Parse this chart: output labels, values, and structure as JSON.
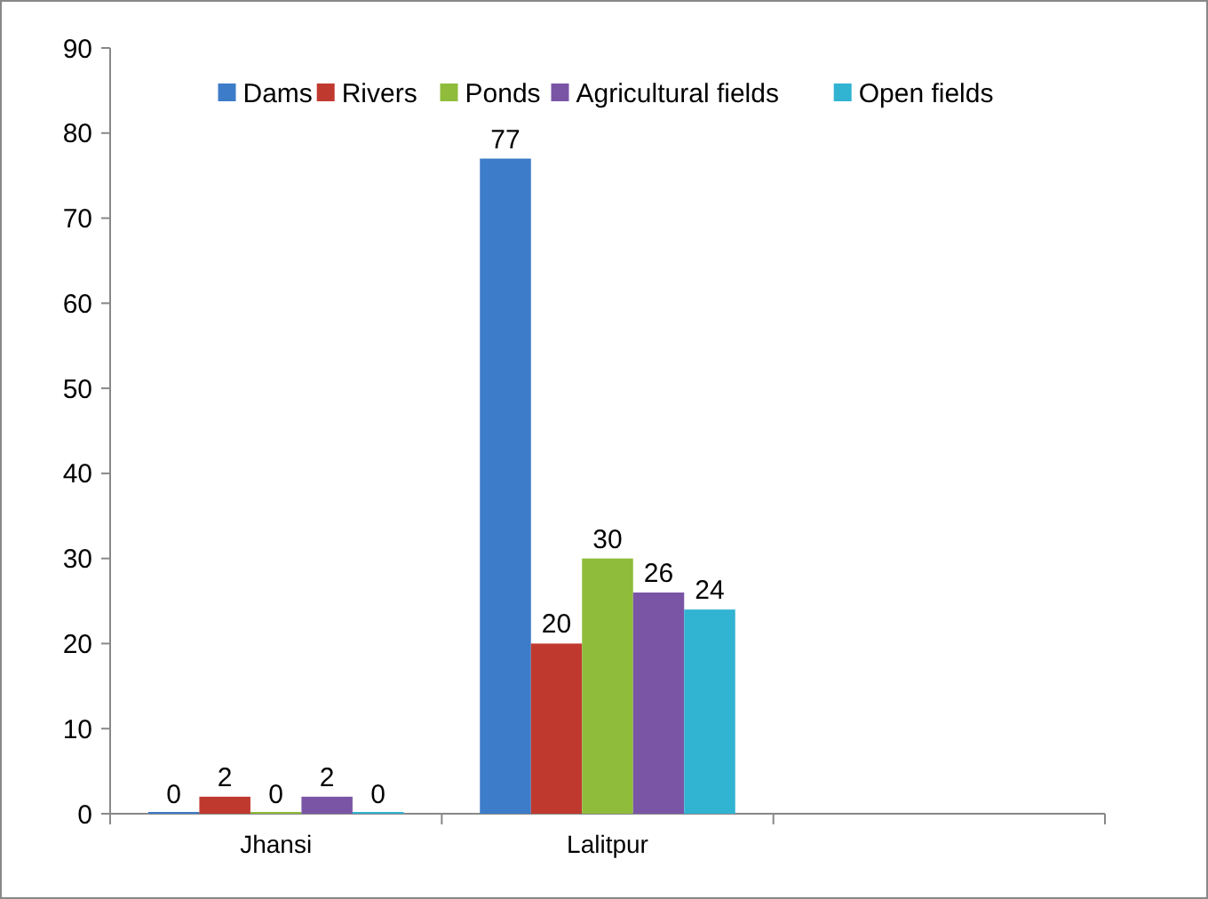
{
  "chart_data": {
    "type": "bar",
    "categories": [
      "Jhansi",
      "Lalitpur",
      null
    ],
    "series": [
      {
        "name": "Dams",
        "color": "#3d7cc9",
        "values": [
          0,
          77,
          null
        ]
      },
      {
        "name": "Rivers",
        "color": "#c0392f",
        "values": [
          2,
          20,
          null
        ]
      },
      {
        "name": "Ponds",
        "color": "#8fbc3a",
        "values": [
          0,
          30,
          null
        ]
      },
      {
        "name": "Agricultural fields",
        "color": "#7a55a6",
        "values": [
          2,
          26,
          null
        ]
      },
      {
        "name": "Open fields",
        "color": "#31b3d2",
        "values": [
          0,
          24,
          null
        ]
      }
    ],
    "ylim": [
      0,
      90
    ],
    "yticks": [
      0,
      10,
      20,
      30,
      40,
      50,
      60,
      70,
      80,
      90
    ],
    "grid": false,
    "legend": "top",
    "data_labels": true
  }
}
